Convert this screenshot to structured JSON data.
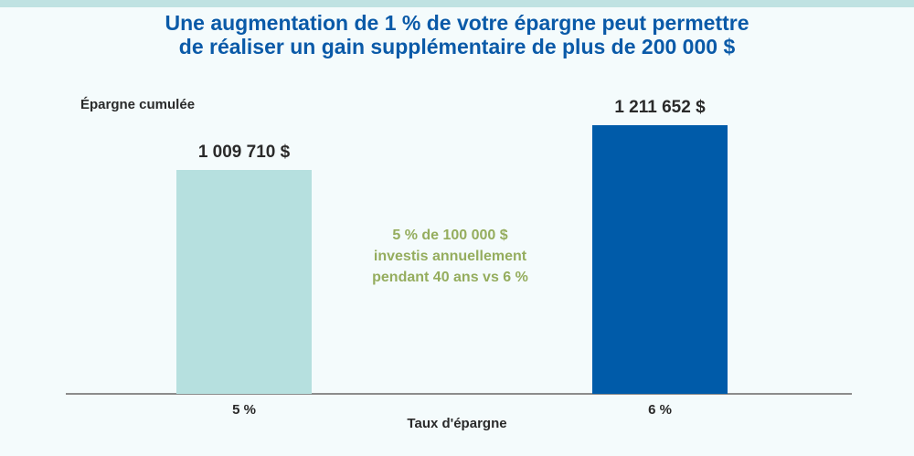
{
  "title_lines": [
    "Une augmentation de 1 % de votre épargne peut permettre",
    "de réaliser un gain supplémentaire de plus de 200 000 $"
  ],
  "colors": {
    "title": "#0a5aa8",
    "bar_light": "#b6e0df",
    "bar_dark": "#005ba9",
    "annotation": "#95ad5e",
    "axis": "#8c8c8c"
  },
  "chart_data": {
    "type": "bar",
    "title": "Une augmentation de 1 % de votre épargne peut permettre de réaliser un gain supplémentaire de plus de 200 000 $",
    "ylabel": "Épargne cumulée",
    "xlabel": "Taux d'épargne",
    "categories": [
      "5 %",
      "6 %"
    ],
    "values": [
      1009710,
      1211652
    ],
    "value_labels": [
      "1 009 710 $",
      "1 211 652 $"
    ],
    "bar_colors": [
      "#b6e0df",
      "#005ba9"
    ],
    "ylim": [
      0,
      1400000
    ],
    "grid": false,
    "annotation_lines": [
      "5 % de 100 000 $",
      "investis annuellement",
      "pendant 40 ans vs 6 %"
    ]
  }
}
